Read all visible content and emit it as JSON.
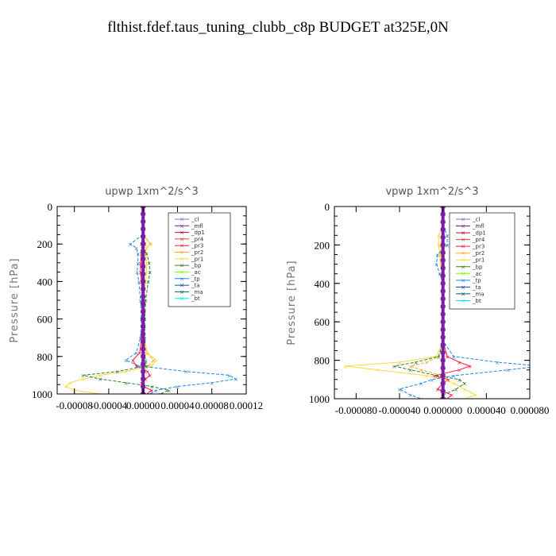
{
  "suptitle": "flthist.fdef.taus_tuning_clubb_c8p  BUDGET at325E,0N",
  "chart_data": [
    {
      "type": "line",
      "title": "upwp    1xm^2/s^3",
      "ylabel": "Pressure [hPa]",
      "xlabel": "",
      "xlim": [
        -0.0001,
        0.00012
      ],
      "ylim": [
        1000,
        0
      ],
      "xtick_values": [
        -8e-05,
        -4e-05,
        0.0,
        4e-05,
        8e-05,
        0.00012
      ],
      "xtick_labels": [
        "-0.00008",
        "-0.00004",
        "0.00000",
        "0.00004",
        "0.00008",
        "0.00012"
      ],
      "ytick_values": [
        0,
        200,
        400,
        600,
        800,
        1000
      ],
      "ytick_labels": [
        "0",
        "200",
        "400",
        "600",
        "800",
        "1000"
      ],
      "legend_position": "top-right",
      "pressure": [
        100,
        150,
        200,
        220,
        250,
        300,
        350,
        400,
        500,
        600,
        700,
        780,
        820,
        850,
        880,
        900,
        920,
        940,
        960,
        980,
        1000
      ],
      "series": [
        {
          "name": "_cl",
          "color": "#9966cc",
          "values": [
            0,
            0,
            0,
            0,
            0,
            0,
            0,
            0,
            0,
            0,
            0,
            0,
            0,
            0,
            0,
            0,
            0,
            0,
            0,
            0,
            0
          ]
        },
        {
          "name": "_mfl",
          "color": "#7b1fa2",
          "values": [
            0,
            0,
            0,
            0,
            0,
            0,
            0,
            0,
            0,
            0,
            0,
            0,
            0,
            0,
            0,
            0,
            0,
            0,
            0,
            0,
            0
          ]
        },
        {
          "name": "_dp1",
          "color": "#a31545",
          "values": [
            0,
            0,
            0,
            0,
            0,
            0,
            0,
            0,
            0,
            0,
            0,
            0,
            0,
            0,
            0,
            0,
            0,
            0,
            0,
            0,
            0
          ]
        },
        {
          "name": "_pr4",
          "color": "#e53935",
          "values": [
            0,
            0,
            0,
            0,
            0,
            0,
            0,
            0,
            0,
            0,
            0,
            0,
            0,
            0,
            0,
            0,
            0,
            0,
            0,
            0,
            0
          ]
        },
        {
          "name": "_pr3",
          "color": "#ff1744",
          "values": [
            0,
            0,
            2e-06,
            0,
            -2e-06,
            -3e-06,
            -3e-06,
            -2e-06,
            -1e-06,
            -1e-06,
            -2e-06,
            -4e-06,
            -1.2e-05,
            -8e-06,
            5e-06,
            8e-06,
            3e-06,
            -2e-06,
            0,
            1e-05,
            4e-06
          ]
        },
        {
          "name": "_pr2",
          "color": "#ffa726",
          "values": [
            0,
            0,
            9e-06,
            4e-06,
            1e-06,
            0,
            0,
            0,
            0,
            0,
            0,
            4e-06,
            1.2e-05,
            6e-06,
            0,
            0,
            0,
            0,
            0,
            0,
            0
          ]
        },
        {
          "name": "_pr1",
          "color": "#fdd835",
          "values": [
            0,
            0,
            8e-06,
            4e-06,
            3e-06,
            4e-06,
            4e-06,
            3e-06,
            1e-06,
            0,
            1e-06,
            5e-06,
            1.5e-05,
            1e-05,
            -2e-05,
            -5e-05,
            -7e-05,
            -8.5e-05,
            -9e-05,
            -8e-05,
            -5e-05
          ]
        },
        {
          "name": "_bp",
          "color": "#2e7d32",
          "values": [
            0,
            0,
            -2e-06,
            -1e-06,
            4e-06,
            7e-06,
            8e-06,
            6e-06,
            3e-06,
            2e-06,
            2e-06,
            1e-06,
            3e-06,
            4e-06,
            -3e-05,
            -7e-05,
            -5e-05,
            -2e-05,
            1e-05,
            3e-05,
            2e-05
          ]
        },
        {
          "name": "_ac",
          "color": "#7cfc00",
          "values": [
            0,
            0,
            0,
            0,
            0,
            0,
            0,
            0,
            0,
            0,
            0,
            0,
            0,
            0,
            0,
            0,
            0,
            0,
            0,
            0,
            0
          ]
        },
        {
          "name": "_tp",
          "color": "#1e88e5",
          "values": [
            0,
            0,
            -1.5e-05,
            -8e-06,
            -6e-06,
            -6e-06,
            -7e-06,
            -5e-06,
            -3e-06,
            -2e-06,
            -3e-06,
            -8e-06,
            -2e-05,
            -5e-06,
            5e-05,
            0.0001,
            0.000108,
            8e-05,
            4e-05,
            1.5e-05,
            8e-06
          ]
        },
        {
          "name": "_ta",
          "color": "#0d47a1",
          "values": [
            0,
            0,
            0,
            0,
            0,
            0,
            0,
            0,
            0,
            0,
            0,
            0,
            0,
            0,
            0,
            0,
            0,
            0,
            0,
            0,
            0
          ]
        },
        {
          "name": "_ma",
          "color": "#006064",
          "values": [
            0,
            0,
            0,
            0,
            0,
            0,
            0,
            0,
            0,
            0,
            0,
            0,
            0,
            0,
            0,
            0,
            0,
            0,
            0,
            0,
            0
          ]
        },
        {
          "name": "_bt",
          "color": "#00e5ee",
          "values": [
            0,
            0,
            0,
            0,
            0,
            0,
            0,
            0,
            0,
            0,
            0,
            0,
            0,
            0,
            0,
            0,
            0,
            0,
            0,
            0,
            0
          ]
        }
      ]
    },
    {
      "type": "line",
      "title": "vpwp    1xm^2/s^3",
      "ylabel": "Pressure [hPa]",
      "xlabel": "",
      "xlim": [
        -0.0001,
        8e-05
      ],
      "ylim": [
        1000,
        0
      ],
      "xtick_values": [
        -8e-05,
        -4e-05,
        0.0,
        4e-05,
        8e-05
      ],
      "xtick_labels": [
        "-0.000080",
        "-0.000040",
        "0.000000",
        "0.000040",
        "0.000080"
      ],
      "ytick_values": [
        0,
        200,
        400,
        600,
        800,
        1000
      ],
      "ytick_labels": [
        "0",
        "200",
        "400",
        "600",
        "800",
        "1000"
      ],
      "legend_position": "top-right",
      "pressure": [
        100,
        150,
        200,
        250,
        300,
        350,
        400,
        500,
        600,
        700,
        780,
        810,
        830,
        850,
        880,
        900,
        920,
        950,
        980,
        1000
      ],
      "series": [
        {
          "name": "_cl",
          "color": "#9966cc",
          "values": [
            0,
            0,
            0,
            0,
            0,
            0,
            0,
            0,
            0,
            0,
            0,
            0,
            0,
            0,
            0,
            0,
            0,
            0,
            0,
            0
          ]
        },
        {
          "name": "_mfl",
          "color": "#7b1fa2",
          "values": [
            0,
            0,
            0,
            0,
            0,
            0,
            0,
            0,
            0,
            0,
            0,
            0,
            0,
            0,
            0,
            0,
            0,
            0,
            0,
            0
          ]
        },
        {
          "name": "_dp1",
          "color": "#a31545",
          "values": [
            0,
            0,
            0,
            0,
            0,
            0,
            0,
            0,
            0,
            0,
            0,
            0,
            0,
            0,
            0,
            0,
            0,
            0,
            0,
            0
          ]
        },
        {
          "name": "_pr4",
          "color": "#e53935",
          "values": [
            0,
            0,
            0,
            0,
            0,
            0,
            0,
            0,
            0,
            0,
            0,
            0,
            0,
            0,
            0,
            0,
            0,
            0,
            0,
            0
          ]
        },
        {
          "name": "_pr3",
          "color": "#ff1744",
          "values": [
            0,
            0,
            0,
            0,
            0,
            0,
            0,
            0,
            0,
            0,
            4e-06,
            1.5e-05,
            2.5e-05,
            1.5e-05,
            -8e-06,
            5e-06,
            0,
            -5e-06,
            8e-06,
            4e-06
          ]
        },
        {
          "name": "_pr2",
          "color": "#ffa726",
          "values": [
            0,
            0,
            -2e-06,
            -2e-06,
            -1e-06,
            0,
            0,
            0,
            0,
            0,
            -4e-06,
            -1.5e-05,
            -3e-05,
            -2e-05,
            0,
            0,
            0,
            0,
            0,
            0
          ]
        },
        {
          "name": "_pr1",
          "color": "#fdd835",
          "values": [
            0,
            -4e-06,
            -4e-06,
            -3e-06,
            -2e-06,
            -1e-06,
            0,
            0,
            0,
            0,
            -6e-06,
            -4e-05,
            -9e-05,
            -6e-05,
            -1.5e-05,
            0,
            1e-05,
            2e-05,
            3e-05,
            2e-05
          ]
        },
        {
          "name": "_bp",
          "color": "#2e7d32",
          "values": [
            0,
            0,
            0,
            0,
            0,
            0,
            0,
            0,
            0,
            0,
            -4e-06,
            -2.5e-05,
            -4.5e-05,
            -3e-05,
            -5e-06,
            1.5e-05,
            2e-05,
            1.2e-05,
            0,
            0
          ]
        },
        {
          "name": "_ac",
          "color": "#7cfc00",
          "values": [
            0,
            0,
            0,
            0,
            0,
            0,
            0,
            0,
            0,
            0,
            0,
            0,
            0,
            0,
            0,
            0,
            0,
            0,
            0,
            0
          ]
        },
        {
          "name": "_tp",
          "color": "#1e88e5",
          "values": [
            0,
            4e-06,
            4e-06,
            -5e-06,
            -6e-06,
            -3e-06,
            0,
            0,
            0,
            0,
            1e-05,
            5e-05,
            9e-05,
            6e-05,
            1e-05,
            -1e-05,
            -2e-05,
            -4e-05,
            -3e-05,
            -2e-05
          ]
        },
        {
          "name": "_ta",
          "color": "#0d47a1",
          "values": [
            0,
            0,
            0,
            0,
            0,
            0,
            0,
            0,
            0,
            0,
            0,
            0,
            0,
            0,
            0,
            0,
            0,
            0,
            0,
            0
          ]
        },
        {
          "name": "_ma",
          "color": "#006064",
          "values": [
            0,
            0,
            0,
            0,
            0,
            0,
            0,
            0,
            0,
            0,
            0,
            0,
            0,
            0,
            0,
            0,
            0,
            0,
            0,
            0
          ]
        },
        {
          "name": "_bt",
          "color": "#00e5ee",
          "values": [
            0,
            0,
            0,
            0,
            0,
            0,
            0,
            0,
            0,
            0,
            0,
            0,
            0,
            0,
            0,
            0,
            0,
            0,
            0,
            0
          ]
        }
      ]
    }
  ]
}
